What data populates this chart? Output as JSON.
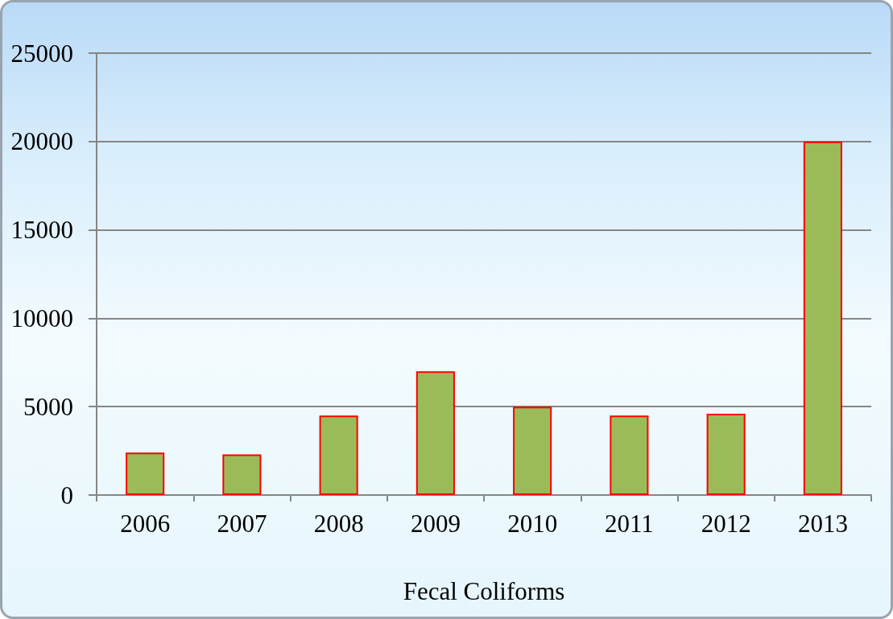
{
  "chart_data": {
    "type": "bar",
    "xlabel": "Fecal Coliforms",
    "categories": [
      "2006",
      "2007",
      "2008",
      "2009",
      "2010",
      "2011",
      "2012",
      "2013"
    ],
    "values": [
      2400,
      2300,
      4500,
      7000,
      5000,
      4500,
      4600,
      20000
    ],
    "color": "#9bbb59",
    "ylim": [
      0,
      25000
    ],
    "yticks": [
      0,
      5000,
      10000,
      15000,
      20000,
      25000
    ],
    "grid": "y"
  }
}
